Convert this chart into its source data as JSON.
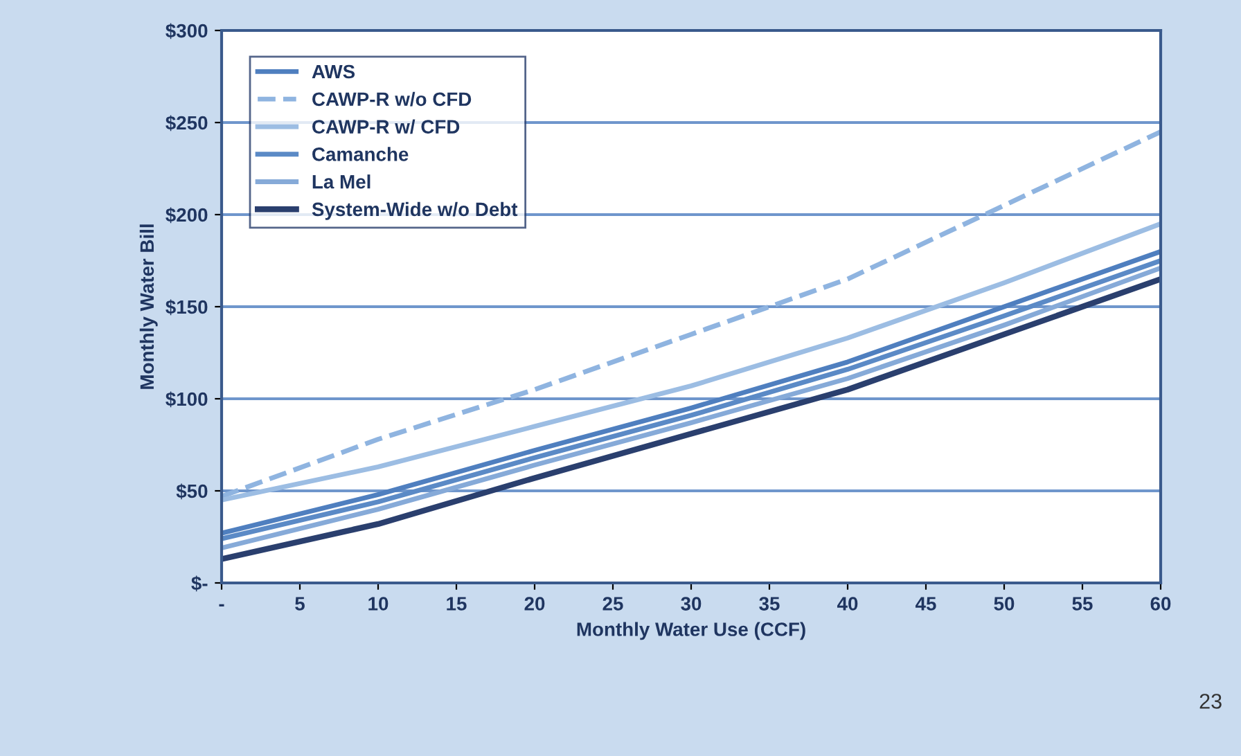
{
  "chart_data": {
    "type": "line",
    "xlabel": "Monthly Water Use (CCF)",
    "ylabel": "Monthly Water Bill",
    "x": [
      0,
      10,
      20,
      30,
      40,
      50,
      60
    ],
    "series": [
      {
        "name": "AWS",
        "color": "#4f7fbf",
        "values": [
          27,
          48,
          72,
          95,
          120,
          150,
          180
        ]
      },
      {
        "name": "CAWP-R w/o CFD",
        "color": "#8fb4e0",
        "line_style": "dashed",
        "values": [
          47,
          78,
          105,
          135,
          165,
          205,
          245
        ]
      },
      {
        "name": "CAWP-R w/ CFD",
        "color": "#9cbde3",
        "values": [
          45,
          63,
          85,
          107,
          133,
          163,
          195
        ]
      },
      {
        "name": "Camanche",
        "color": "#5b8ac6",
        "values": [
          24,
          44,
          68,
          91,
          116,
          145,
          175
        ]
      },
      {
        "name": "La Mel",
        "color": "#86aad8",
        "values": [
          19,
          40,
          64,
          87,
          111,
          140,
          171
        ]
      },
      {
        "name": "System-Wide w/o Debt",
        "color": "#2a3f6e",
        "values": [
          13,
          32,
          57,
          81,
          105,
          135,
          165
        ]
      }
    ],
    "xlim": [
      0,
      60
    ],
    "ylim": [
      0,
      300
    ],
    "xticks": [
      {
        "value": 0,
        "label": "-"
      },
      5,
      10,
      15,
      20,
      25,
      30,
      35,
      40,
      45,
      50,
      55,
      60
    ],
    "yticks": [
      {
        "value": 0,
        "label": "$-"
      },
      {
        "value": 50,
        "label": "$50"
      },
      {
        "value": 100,
        "label": "$100"
      },
      {
        "value": 150,
        "label": "$150"
      },
      {
        "value": 200,
        "label": "$200"
      },
      {
        "value": 250,
        "label": "$250"
      },
      {
        "value": 300,
        "label": "$300"
      }
    ],
    "grid": "y",
    "legend": "top left",
    "line_style": "solid",
    "marker": "none",
    "annotations": [
      "23"
    ]
  }
}
